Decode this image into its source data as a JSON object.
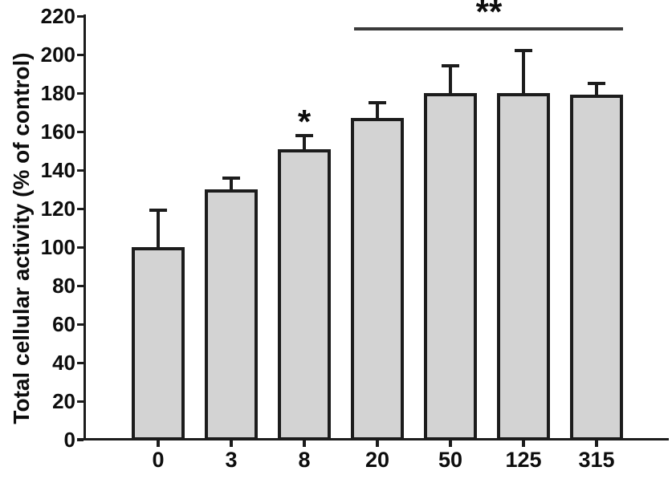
{
  "figure": {
    "background": "#ffffff",
    "bar_fill": "#d3d3d3",
    "line_color": "#1c1c1c",
    "sig_line_color": "#3a3a3a",
    "text_color": "#0d0d0d"
  },
  "chart_data": {
    "type": "bar",
    "title": "",
    "xlabel": "",
    "ylabel": "Total cellular activity (% of control)",
    "categories": [
      "0",
      "3",
      "8",
      "20",
      "50",
      "125",
      "315"
    ],
    "values": [
      100,
      130,
      151,
      167,
      180,
      180,
      179
    ],
    "upper_errors": [
      19,
      6,
      7,
      8,
      14,
      22,
      6
    ],
    "ylim": [
      0,
      220
    ],
    "yticks": [
      0,
      20,
      40,
      60,
      80,
      100,
      120,
      140,
      160,
      180,
      200,
      220
    ],
    "grid": false,
    "legend": "none",
    "error_bars": "upper-only whiskers with caps",
    "annotations": [
      {
        "symbol": "*",
        "type": "single-bar",
        "category": "8",
        "category_index": 2
      },
      {
        "symbol": "**",
        "type": "bracket-line",
        "from_category": "20",
        "to_category": "315",
        "from_index": 3,
        "to_index": 6,
        "line_y_value": 214
      }
    ]
  }
}
